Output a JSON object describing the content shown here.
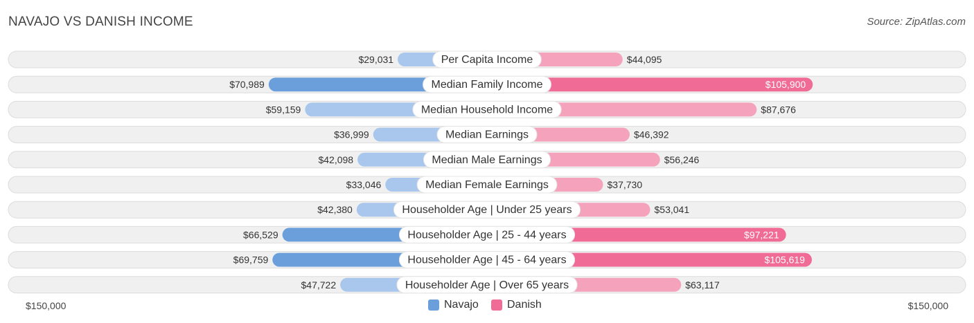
{
  "header": {
    "title": "NAVAJO VS DANISH INCOME",
    "source": "Source: ZipAtlas.com"
  },
  "colors": {
    "left_strong": "#6a9fdc",
    "left_light": "#a9c6ec",
    "right_strong": "#f06b95",
    "right_light": "#f5a3bd",
    "row_bg": "#f0f0f0",
    "row_border": "#dcdcdc"
  },
  "legend": {
    "left_label": "Navajo",
    "right_label": "Danish"
  },
  "axis": {
    "left_label": "$150,000",
    "right_label": "$150,000"
  },
  "chart_data": {
    "type": "bar",
    "orientation": "diverging-horizontal",
    "title": "NAVAJO VS DANISH INCOME",
    "xlim": [
      -150000,
      150000
    ],
    "categories": [
      "Per Capita Income",
      "Median Family Income",
      "Median Household Income",
      "Median Earnings",
      "Median Male Earnings",
      "Median Female Earnings",
      "Householder Age | Under 25 years",
      "Householder Age | 25 - 44 years",
      "Householder Age | 45 - 64 years",
      "Householder Age | Over 65 years"
    ],
    "series": [
      {
        "name": "Navajo",
        "values": [
          29031,
          70989,
          59159,
          36999,
          42098,
          33046,
          42380,
          66529,
          69759,
          47722
        ],
        "labels": [
          "$29,031",
          "$70,989",
          "$59,159",
          "$36,999",
          "$42,098",
          "$33,046",
          "$42,380",
          "$66,529",
          "$69,759",
          "$47,722"
        ]
      },
      {
        "name": "Danish",
        "values": [
          44095,
          105900,
          87676,
          46392,
          56246,
          37730,
          53041,
          97221,
          105619,
          63117
        ],
        "labels": [
          "$44,095",
          "$105,900",
          "$87,676",
          "$46,392",
          "$56,246",
          "$37,730",
          "$53,041",
          "$97,221",
          "$105,619",
          "$63,117"
        ]
      }
    ]
  }
}
